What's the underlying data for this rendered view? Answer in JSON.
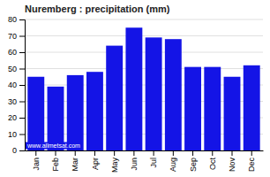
{
  "chart_data": {
    "type": "bar",
    "title": "Nuremberg : precipitation (mm)",
    "categories": [
      "Jan",
      "Feb",
      "Mar",
      "Apr",
      "May",
      "Jun",
      "Jul",
      "Aug",
      "Sep",
      "Oct",
      "Nov",
      "Dec"
    ],
    "values": [
      45,
      39,
      46,
      48,
      64,
      75,
      69,
      68,
      51,
      51,
      45,
      52
    ],
    "color": "#1414e6",
    "ylim": [
      0,
      80
    ],
    "yticks": [
      0,
      10,
      20,
      30,
      40,
      50,
      60,
      70,
      80
    ],
    "grid": true,
    "annotation": "www.allmetsat.com"
  }
}
